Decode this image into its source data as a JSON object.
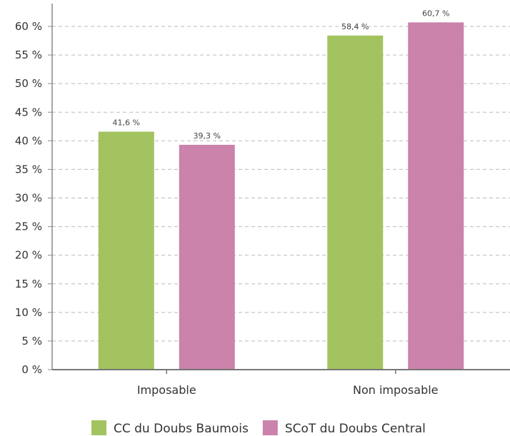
{
  "chart_data": {
    "type": "bar",
    "title": "",
    "xlabel": "",
    "ylabel": "",
    "categories": [
      "Imposable",
      "Non imposable"
    ],
    "series": [
      {
        "name": "CC du Doubs Baumois",
        "values": [
          41.6,
          58.4
        ],
        "labels": [
          "41,6 %",
          "58,4 %"
        ],
        "color": "#a2c35f"
      },
      {
        "name": "SCoT du Doubs Central",
        "values": [
          39.3,
          60.7
        ],
        "labels": [
          "39,3 %",
          "60,7 %"
        ],
        "color": "#cb82ab"
      }
    ],
    "ylim": [
      0,
      60
    ],
    "yticks": [
      0,
      5,
      10,
      15,
      20,
      25,
      30,
      35,
      40,
      45,
      50,
      55,
      60
    ],
    "ytick_labels": [
      "0 %",
      "5 %",
      "10 %",
      "15 %",
      "20 %",
      "25 %",
      "30 %",
      "35 %",
      "40 %",
      "45 %",
      "50 %",
      "55 %",
      "60 %"
    ],
    "grid": true,
    "legend_position": "bottom"
  }
}
